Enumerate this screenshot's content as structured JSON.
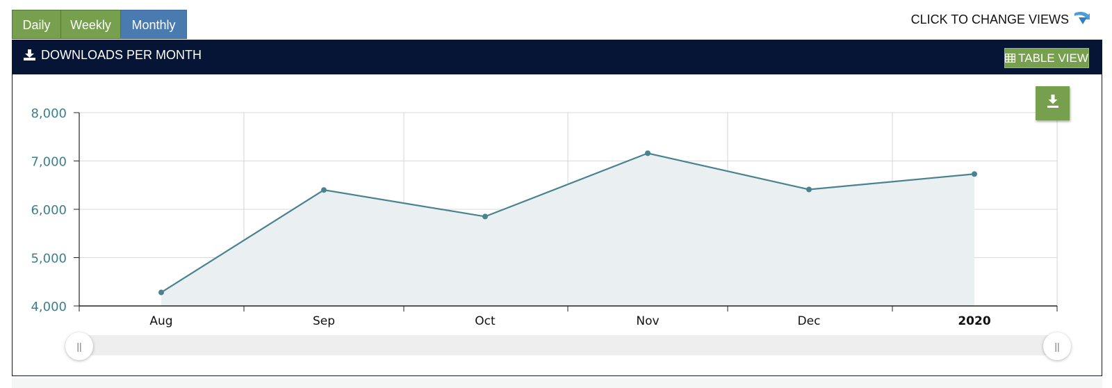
{
  "tabs": [
    {
      "label": "Daily",
      "active": false
    },
    {
      "label": "Weekly",
      "active": false
    },
    {
      "label": "Monthly",
      "active": true
    }
  ],
  "change_views": {
    "label": "CLICK TO CHANGE VIEWS",
    "icon": "arrow-down-icon"
  },
  "panel": {
    "title": "DOWNLOADS PER MONTH",
    "title_icon": "download-icon",
    "table_view_label": "TABLE VIEW",
    "table_view_icon": "table-icon",
    "export_icon": "download-icon"
  },
  "colors": {
    "tab_green": "#76a04d",
    "tab_blue": "#4a7bb0",
    "header_navy": "#061535",
    "line": "#4a8390",
    "area": "#eaf0f2",
    "axis_label": "#3d7f8a"
  },
  "chart_data": {
    "type": "area",
    "x_labels": [
      "Aug",
      "Sep",
      "Oct",
      "Nov",
      "Dec",
      "2020"
    ],
    "values": [
      4280,
      6400,
      5850,
      7160,
      6410,
      6730
    ],
    "ylim": [
      4000,
      8000
    ],
    "y_ticks": [
      "4,000",
      "5,000",
      "6,000",
      "7,000",
      "8,000"
    ],
    "grid": true,
    "title": "",
    "xlabel": "",
    "ylabel": ""
  }
}
